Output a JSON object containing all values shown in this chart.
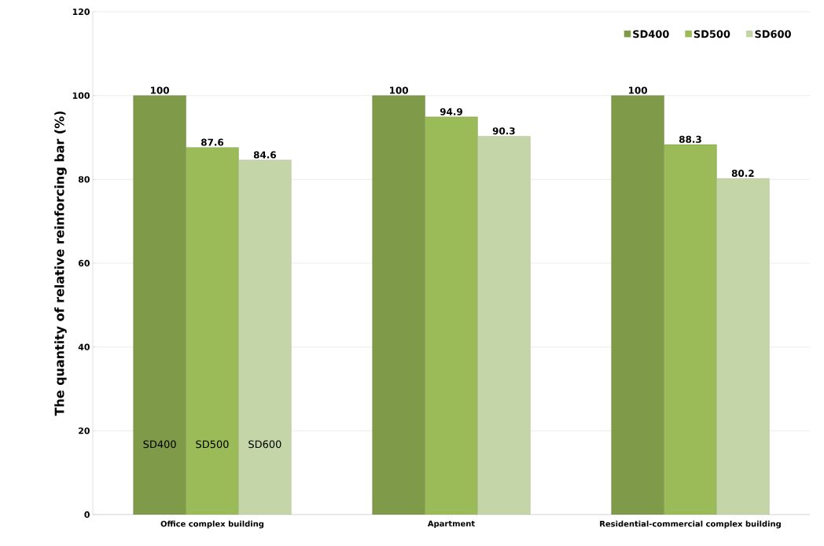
{
  "chart_data": {
    "type": "bar",
    "ylabel": "The quantity of relative reinforcing bar (%)",
    "categories": [
      "Office complex building",
      "Apartment",
      "Residential-commercial complex building"
    ],
    "series": [
      {
        "name": "SD400",
        "color": "#7f9a48",
        "values": [
          100,
          100,
          100
        ]
      },
      {
        "name": "SD500",
        "color": "#9bbb59",
        "values": [
          87.6,
          94.9,
          88.3
        ]
      },
      {
        "name": "SD600",
        "color": "#c4d6a8",
        "values": [
          84.6,
          90.3,
          80.2
        ]
      }
    ],
    "ylim": [
      0,
      120
    ],
    "yticks": [
      0,
      20,
      40,
      60,
      80,
      100,
      120
    ],
    "grid": "y",
    "legend": "top right",
    "data_labels": true,
    "annotations": [
      "SD400",
      "SD500",
      "SD600"
    ]
  }
}
